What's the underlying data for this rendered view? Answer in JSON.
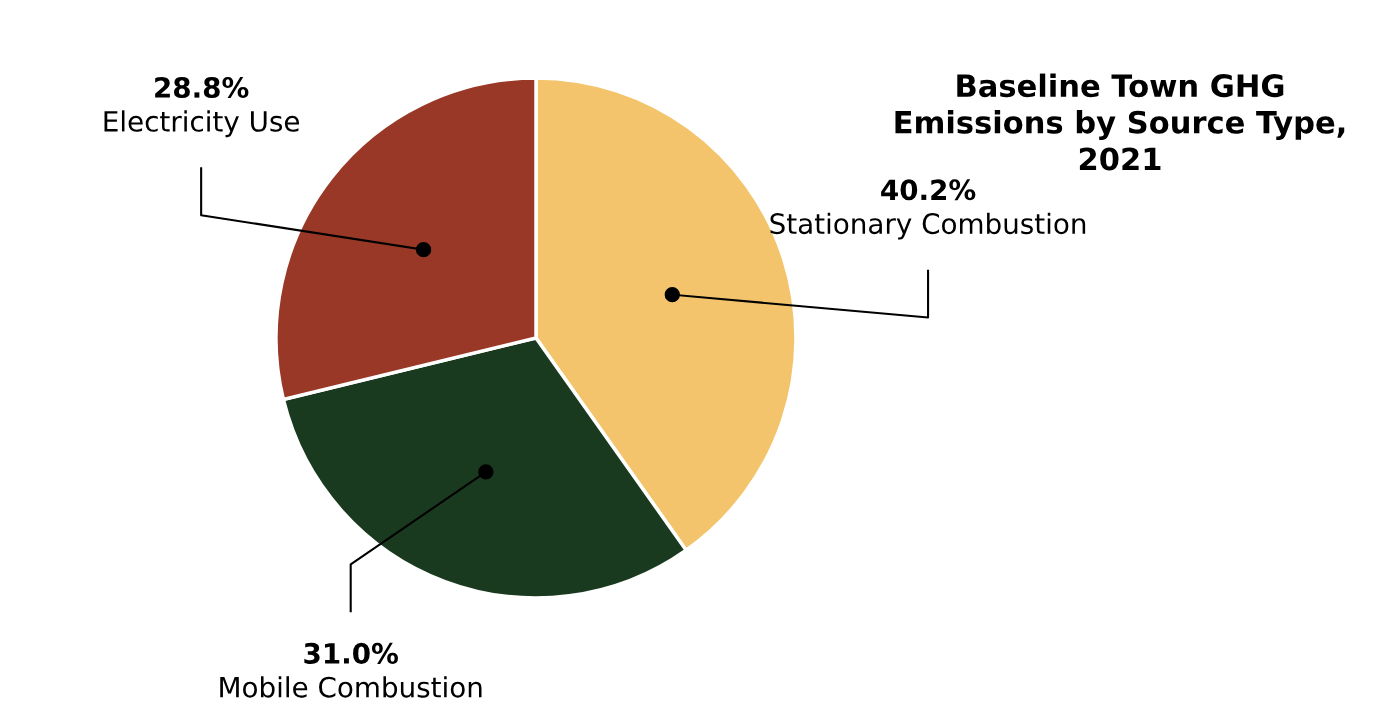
{
  "chart_data": {
    "type": "pie",
    "title": "Baseline Town GHG\nEmissions by Source Type,\n2021",
    "categories": [
      "Stationary Combustion",
      "Mobile Combustion",
      "Electricity Use"
    ],
    "values": [
      40.2,
      31.0,
      28.8
    ],
    "value_labels": [
      "40.2%",
      "31.0%",
      "28.8%"
    ],
    "colors": [
      "#f3c46b",
      "#1a3a20",
      "#9a3827"
    ]
  }
}
